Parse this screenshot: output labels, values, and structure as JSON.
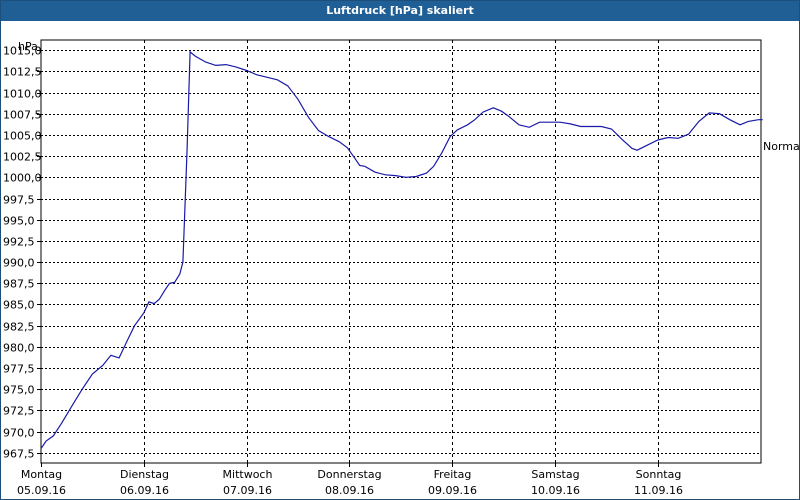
{
  "window": {
    "title": "Luftdruck [hPa] skaliert"
  },
  "chart_data": {
    "type": "line",
    "title": "Luftdruck [hPa] skaliert",
    "ylabel": "hPa",
    "xlabel": "",
    "ylim": [
      966.3,
      1016.2
    ],
    "yticks": [
      "1015,0",
      "1012,5",
      "1010,0",
      "1007,5",
      "1005,0",
      "1002,5",
      "1000,0",
      "997,5",
      "995,0",
      "992,5",
      "990,0",
      "987,5",
      "985,0",
      "982,5",
      "980,0",
      "977,5",
      "975,0",
      "972,5",
      "970,0",
      "967,5"
    ],
    "ytick_values": [
      1015.0,
      1012.5,
      1010.0,
      1007.5,
      1005.0,
      1002.5,
      1000.0,
      997.5,
      995.0,
      992.5,
      990.0,
      987.5,
      985.0,
      982.5,
      980.0,
      977.5,
      975.0,
      972.5,
      970.0,
      967.5
    ],
    "x_days": [
      {
        "day": "Montag",
        "date": "05.09.16"
      },
      {
        "day": "Dienstag",
        "date": "06.09.16"
      },
      {
        "day": "Mittwoch",
        "date": "07.09.16"
      },
      {
        "day": "Donnerstag",
        "date": "08.09.16"
      },
      {
        "day": "Freitag",
        "date": "09.09.16"
      },
      {
        "day": "Samstag",
        "date": "10.09.16"
      },
      {
        "day": "Sonntag",
        "date": "11.09.16"
      }
    ],
    "xlim_days": [
      0,
      7.05
    ],
    "grid": true,
    "right_label": "Normal",
    "line_color": "#1a1aa8",
    "series": [
      {
        "points": [
          [
            0.0,
            968.0
          ],
          [
            0.05,
            968.9
          ],
          [
            0.12,
            969.5
          ],
          [
            0.2,
            971.0
          ],
          [
            0.3,
            973.0
          ],
          [
            0.4,
            975.0
          ],
          [
            0.5,
            976.8
          ],
          [
            0.6,
            977.8
          ],
          [
            0.68,
            979.0
          ],
          [
            0.76,
            978.7
          ],
          [
            0.83,
            980.5
          ],
          [
            0.91,
            982.5
          ],
          [
            1.0,
            984.0
          ],
          [
            1.05,
            985.3
          ],
          [
            1.1,
            985.1
          ],
          [
            1.15,
            985.6
          ],
          [
            1.2,
            986.6
          ],
          [
            1.25,
            987.5
          ],
          [
            1.3,
            987.6
          ],
          [
            1.35,
            988.6
          ],
          [
            1.38,
            990.0
          ],
          [
            1.42,
            1003.0
          ],
          [
            1.45,
            1014.8
          ],
          [
            1.5,
            1014.3
          ],
          [
            1.6,
            1013.6
          ],
          [
            1.7,
            1013.2
          ],
          [
            1.8,
            1013.3
          ],
          [
            1.9,
            1013.0
          ],
          [
            2.0,
            1012.6
          ],
          [
            2.1,
            1012.1
          ],
          [
            2.2,
            1011.8
          ],
          [
            2.3,
            1011.5
          ],
          [
            2.4,
            1010.8
          ],
          [
            2.5,
            1009.2
          ],
          [
            2.6,
            1007.1
          ],
          [
            2.7,
            1005.5
          ],
          [
            2.8,
            1004.8
          ],
          [
            2.9,
            1004.2
          ],
          [
            2.98,
            1003.5
          ],
          [
            3.05,
            1002.3
          ],
          [
            3.1,
            1001.4
          ],
          [
            3.15,
            1001.3
          ],
          [
            3.25,
            1000.6
          ],
          [
            3.35,
            1000.3
          ],
          [
            3.45,
            1000.2
          ],
          [
            3.55,
            1000.0
          ],
          [
            3.65,
            1000.1
          ],
          [
            3.75,
            1000.5
          ],
          [
            3.82,
            1001.3
          ],
          [
            3.9,
            1002.9
          ],
          [
            3.98,
            1004.8
          ],
          [
            4.05,
            1005.6
          ],
          [
            4.15,
            1006.2
          ],
          [
            4.22,
            1006.8
          ],
          [
            4.3,
            1007.7
          ],
          [
            4.4,
            1008.2
          ],
          [
            4.48,
            1007.8
          ],
          [
            4.55,
            1007.2
          ],
          [
            4.65,
            1006.2
          ],
          [
            4.75,
            1005.9
          ],
          [
            4.85,
            1006.5
          ],
          [
            4.95,
            1006.5
          ],
          [
            5.05,
            1006.5
          ],
          [
            5.15,
            1006.3
          ],
          [
            5.25,
            1006.0
          ],
          [
            5.35,
            1006.0
          ],
          [
            5.45,
            1006.0
          ],
          [
            5.55,
            1005.7
          ],
          [
            5.65,
            1004.5
          ],
          [
            5.75,
            1003.4
          ],
          [
            5.8,
            1003.2
          ],
          [
            5.9,
            1003.8
          ],
          [
            6.0,
            1004.4
          ],
          [
            6.1,
            1004.7
          ],
          [
            6.2,
            1004.6
          ],
          [
            6.3,
            1005.1
          ],
          [
            6.4,
            1006.6
          ],
          [
            6.5,
            1007.6
          ],
          [
            6.6,
            1007.5
          ],
          [
            6.7,
            1006.8
          ],
          [
            6.8,
            1006.2
          ],
          [
            6.88,
            1006.6
          ],
          [
            6.98,
            1006.8
          ],
          [
            7.02,
            1006.8
          ]
        ]
      }
    ]
  }
}
